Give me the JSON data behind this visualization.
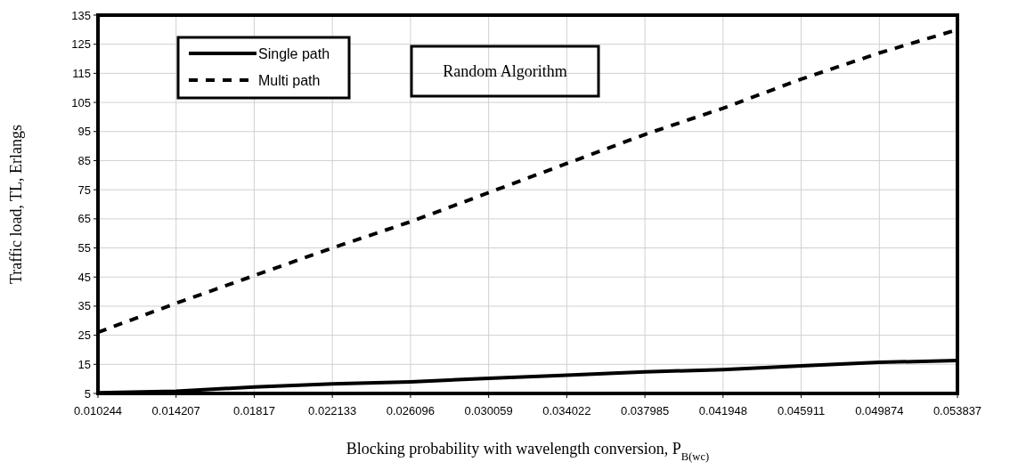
{
  "chart_data": {
    "type": "line",
    "xlabel": "Blocking probability with wavelength conversion, P$_{B(wc)}$",
    "ylabel": "Traffic load, TL, Erlangs",
    "x": [
      0.010244,
      0.014207,
      0.01817,
      0.022133,
      0.026096,
      0.030059,
      0.034022,
      0.037985,
      0.041948,
      0.045911,
      0.049874,
      0.053837
    ],
    "xlim": [
      0.010244,
      0.053837
    ],
    "xticks": [
      0.010244,
      0.014207,
      0.01817,
      0.022133,
      0.026096,
      0.030059,
      0.034022,
      0.037985,
      0.041948,
      0.045911,
      0.049874,
      0.053837
    ],
    "ylim": [
      5,
      135
    ],
    "yticks": [
      5,
      15,
      25,
      35,
      45,
      55,
      65,
      75,
      85,
      95,
      105,
      115,
      125,
      135
    ],
    "series": [
      {
        "name": "Single path",
        "color": "#000000",
        "line_style": "solid",
        "values": [
          5.2,
          5.8,
          7.2,
          8.3,
          9,
          10.2,
          11.3,
          12.4,
          13.2,
          14.5,
          15.7,
          16.3
        ]
      },
      {
        "name": "Multi path",
        "color": "#000000",
        "line_style": "dashed",
        "values": [
          26,
          36,
          45.5,
          55,
          64,
          74,
          84,
          94,
          103,
          113,
          122,
          130
        ]
      }
    ],
    "annotations": [
      "Random Algorithm"
    ],
    "grid": true,
    "legend": "top left"
  }
}
